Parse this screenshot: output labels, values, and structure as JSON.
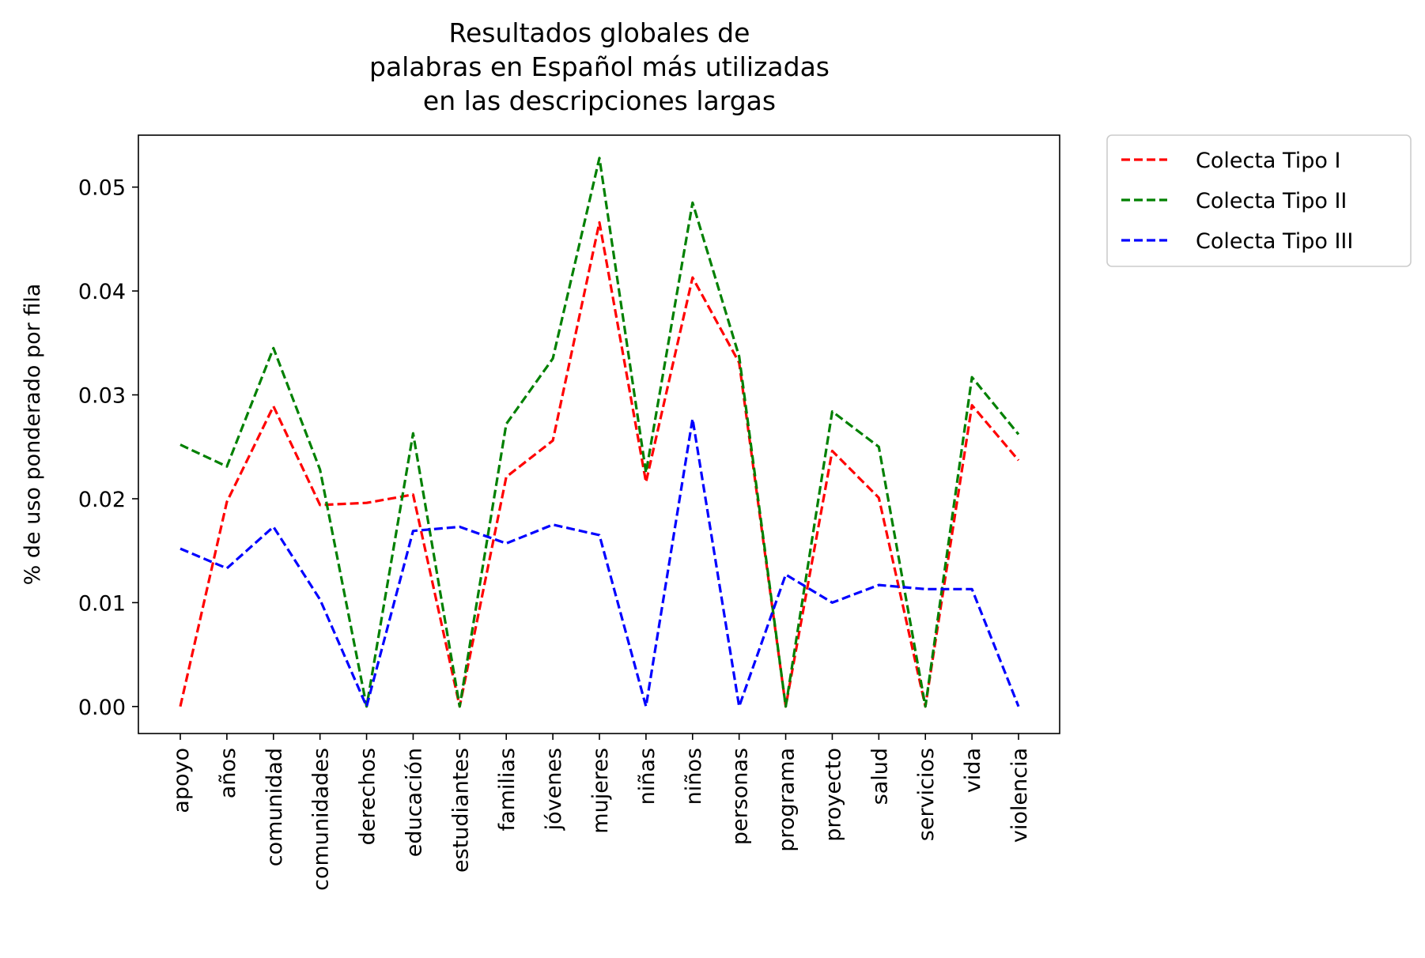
{
  "chart_data": {
    "type": "line",
    "title": [
      "Resultados globales de",
      "palabras en Español más utilizadas",
      "en las descripciones largas"
    ],
    "xlabel": "",
    "ylabel": "% de uso ponderado por fila",
    "categories": [
      "apoyo",
      "años",
      "comunidad",
      "comunidades",
      "derechos",
      "educación",
      "estudiantes",
      "familias",
      "jóvenes",
      "mujeres",
      "niñas",
      "niños",
      "personas",
      "programa",
      "proyecto",
      "salud",
      "servicios",
      "vida",
      "violencia"
    ],
    "ylim": [
      -0.0026,
      0.055
    ],
    "yticks": [
      0.0,
      0.01,
      0.02,
      0.03,
      0.04,
      0.05
    ],
    "ytick_labels": [
      "0.00",
      "0.01",
      "0.02",
      "0.03",
      "0.04",
      "0.05"
    ],
    "grid": false,
    "legend_position": "outside top-right",
    "series": [
      {
        "name": "Colecta Tipo I",
        "color": "#ff0000",
        "dash": "dashed",
        "values": [
          0.0,
          0.0197,
          0.0289,
          0.0194,
          0.0196,
          0.0204,
          0.0,
          0.0221,
          0.0256,
          0.0466,
          0.0216,
          0.0413,
          0.0331,
          0.0,
          0.0246,
          0.0201,
          0.0,
          0.029,
          0.0237
        ]
      },
      {
        "name": "Colecta Tipo II",
        "color": "#008000",
        "dash": "dashed",
        "values": [
          0.0252,
          0.0231,
          0.0345,
          0.0228,
          0.0,
          0.0263,
          0.0,
          0.0272,
          0.0335,
          0.0528,
          0.0225,
          0.0485,
          0.0337,
          0.0,
          0.0284,
          0.025,
          0.0,
          0.0317,
          0.0262
        ]
      },
      {
        "name": "Colecta Tipo III",
        "color": "#0000ff",
        "dash": "dashed",
        "values": [
          0.0152,
          0.0133,
          0.0173,
          0.0103,
          0.0,
          0.0169,
          0.0173,
          0.0157,
          0.0175,
          0.0165,
          0.0,
          0.0277,
          0.0,
          0.0127,
          0.01,
          0.0117,
          0.0113,
          0.0113,
          0.0
        ]
      }
    ]
  }
}
